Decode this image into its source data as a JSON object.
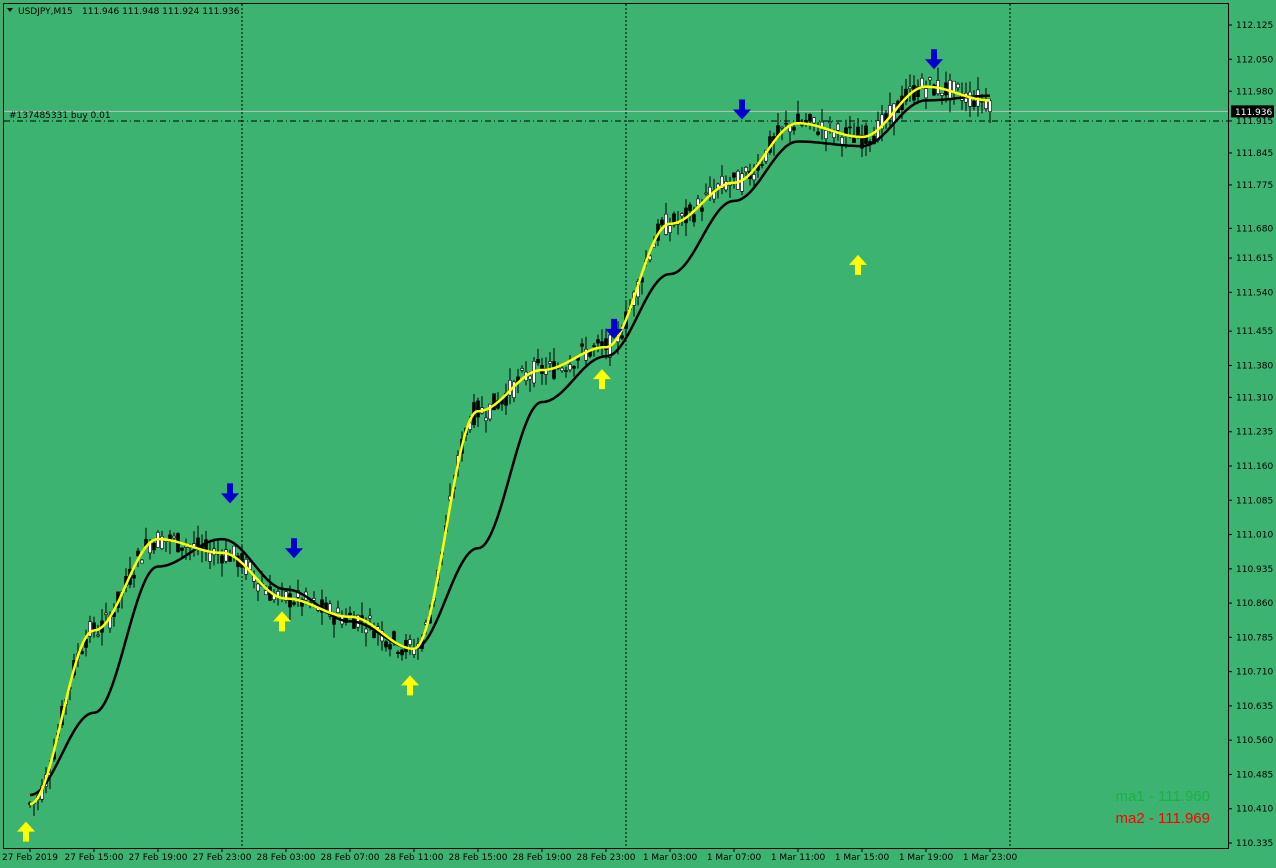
{
  "colors": {
    "background": "#3cb371",
    "axis": "#000000",
    "grid": "#000000",
    "ma_fast": "#ffff00",
    "ma_slow": "#000000",
    "bid_line": "#c0c0c0",
    "price_box": "#000000",
    "price_text": "#ffffff",
    "arrow_buy": "#ffff00",
    "arrow_sell": "#0000cd",
    "ma1_label": "#1fb043",
    "ma2_label": "#ff0000"
  },
  "header": {
    "symbol_tf": "USDJPY,M15",
    "ohlc": "111.946 111.948 111.924 111.936"
  },
  "order_line": {
    "label": "#137485331 buy 0.01",
    "price": 111.915
  },
  "current_price": {
    "value": 111.936,
    "label": "111.936"
  },
  "indicators": {
    "ma1_label": "ma1 - 111.960",
    "ma2_label": "ma2 - 111.969"
  },
  "chart_data": {
    "type": "line",
    "symbol": "USDJPY",
    "timeframe": "M15",
    "x_ticks": [
      "27 Feb 2019",
      "27 Feb 15:00",
      "27 Feb 19:00",
      "27 Feb 23:00",
      "28 Feb 03:00",
      "28 Feb 07:00",
      "28 Feb 11:00",
      "28 Feb 15:00",
      "28 Feb 19:00",
      "28 Feb 23:00",
      "1 Mar 03:00",
      "1 Mar 07:00",
      "1 Mar 11:00",
      "1 Mar 15:00",
      "1 Mar 19:00",
      "1 Mar 23:00"
    ],
    "y_ticks": [
      "112.125",
      "112.050",
      "111.980",
      "111.915",
      "111.845",
      "111.775",
      "111.680",
      "111.615",
      "111.540",
      "111.455",
      "111.380",
      "111.310",
      "111.235",
      "111.160",
      "111.085",
      "111.010",
      "110.935",
      "110.860",
      "110.785",
      "110.710",
      "110.635",
      "110.560",
      "110.485",
      "110.410",
      "110.335"
    ],
    "y_range": [
      110.335,
      112.125
    ],
    "vertical_grid_at": [
      "27 Feb 23:00",
      "28 Feb 23:00",
      "1 Mar 23:00"
    ],
    "series": [
      {
        "name": "ma1",
        "x": [
          "27 Feb 2019",
          "27 Feb 15:00",
          "27 Feb 19:00",
          "27 Feb 23:00",
          "28 Feb 03:00",
          "28 Feb 07:00",
          "28 Feb 11:00",
          "28 Feb 15:00",
          "28 Feb 19:00",
          "28 Feb 23:00",
          "1 Mar 03:00",
          "1 Mar 07:00",
          "1 Mar 11:00",
          "1 Mar 15:00",
          "1 Mar 19:00",
          "1 Mar 23:00"
        ],
        "values": [
          110.42,
          110.8,
          111.0,
          110.97,
          110.87,
          110.83,
          110.76,
          111.28,
          111.37,
          111.42,
          111.69,
          111.78,
          111.91,
          111.88,
          111.99,
          111.96
        ]
      },
      {
        "name": "ma2",
        "x": [
          "27 Feb 2019",
          "27 Feb 15:00",
          "27 Feb 19:00",
          "27 Feb 23:00",
          "28 Feb 03:00",
          "28 Feb 07:00",
          "28 Feb 11:00",
          "28 Feb 15:00",
          "28 Feb 19:00",
          "28 Feb 23:00",
          "1 Mar 03:00",
          "1 Mar 07:00",
          "1 Mar 11:00",
          "1 Mar 15:00",
          "1 Mar 19:00",
          "1 Mar 23:00"
        ],
        "values": [
          110.44,
          110.62,
          110.94,
          111.0,
          110.89,
          110.82,
          110.76,
          110.98,
          111.3,
          111.4,
          111.58,
          111.74,
          111.87,
          111.86,
          111.96,
          111.97
        ]
      }
    ],
    "buy_signals": [
      {
        "x": "27 Feb 2019",
        "price": 110.36
      },
      {
        "x": "28 Feb 03:00",
        "price": 110.82
      },
      {
        "x": "28 Feb 11:00",
        "price": 110.68
      },
      {
        "x": "28 Feb 23:00",
        "price": 111.35
      },
      {
        "x": "1 Mar 15:00",
        "price": 111.6
      }
    ],
    "sell_signals": [
      {
        "x": "27 Feb 23:00",
        "price": 111.1
      },
      {
        "x": "28 Feb 03:00",
        "price": 110.98
      },
      {
        "x": "28 Feb 23:00",
        "price": 111.46
      },
      {
        "x": "1 Mar 07:00",
        "price": 111.94
      },
      {
        "x": "1 Mar 19:00",
        "price": 112.05
      }
    ]
  }
}
